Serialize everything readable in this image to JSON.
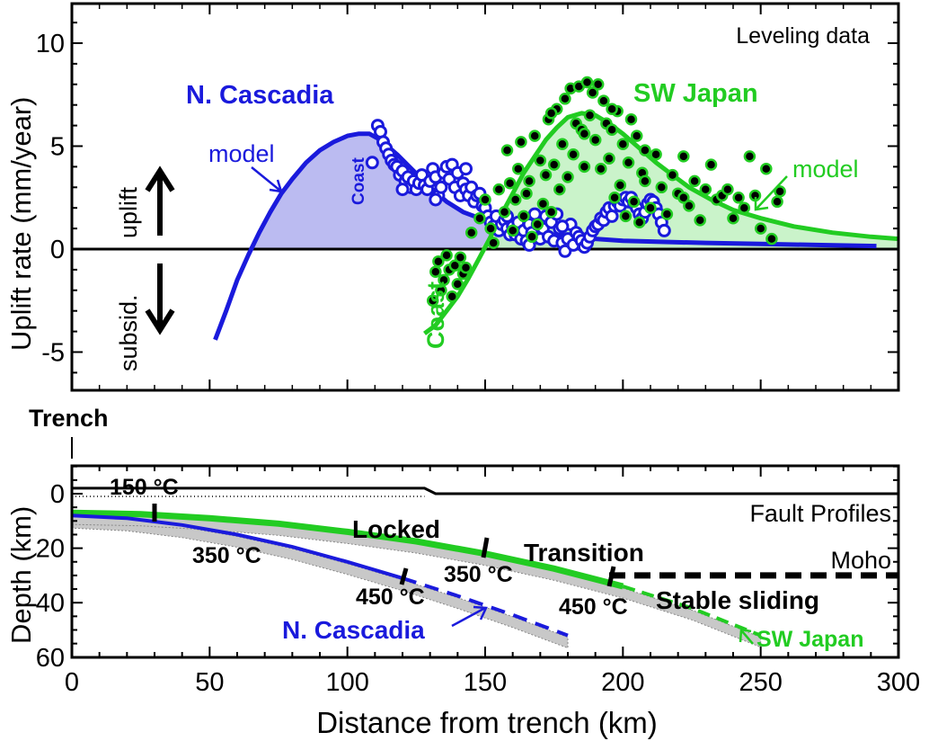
{
  "colors": {
    "cascadia": "#1a1adc",
    "japan": "#22cc22",
    "cascadia_fill": "#b4b4f0",
    "japan_fill": "#c4f2c4",
    "black": "#000000",
    "gray": "#c8c8c8"
  },
  "chart_data": [
    {
      "type": "line",
      "title": "",
      "panel_label": "Leveling data",
      "xlabel": "",
      "ylabel": "Uplift rate (mm/year)",
      "xlim": [
        -25,
        300
      ],
      "ylim": [
        -7,
        12
      ],
      "yticks": [
        "-5",
        "0",
        "5",
        "10"
      ],
      "grid": false,
      "side_labels": {
        "uplift": "uplift",
        "subsid": "subsid."
      },
      "annotations": {
        "cascadia_name": "N. Cascadia",
        "japan_name": "SW Japan",
        "cascadia_model": "model",
        "japan_model": "model",
        "cascadia_coast": "Coast",
        "japan_coast": "Coast"
      },
      "series": [
        {
          "name": "N. Cascadia",
          "role": "model",
          "x": [
            52,
            56,
            60,
            64,
            68,
            72,
            76,
            80,
            85,
            90,
            95,
            100,
            104,
            108,
            112,
            118,
            124,
            130,
            136,
            142,
            148,
            155,
            162,
            170,
            180,
            190,
            200,
            215,
            230,
            250,
            270,
            292
          ],
          "y": [
            -4.4,
            -3.0,
            -1.5,
            -0.3,
            0.8,
            1.8,
            2.7,
            3.4,
            4.2,
            4.8,
            5.2,
            5.5,
            5.6,
            5.6,
            5.3,
            4.6,
            3.8,
            3.0,
            2.3,
            1.8,
            1.5,
            1.2,
            1.0,
            0.8,
            0.6,
            0.5,
            0.4,
            0.35,
            0.3,
            0.25,
            0.2,
            0.15
          ]
        },
        {
          "name": "SW Japan",
          "role": "model",
          "x": [
            128,
            132,
            136,
            140,
            144,
            148,
            152,
            156,
            160,
            164,
            168,
            172,
            176,
            180,
            185,
            190,
            195,
            200,
            206,
            212,
            218,
            224,
            232,
            240,
            250,
            262,
            276,
            290,
            300
          ],
          "y": [
            -4.1,
            -3.7,
            -3.0,
            -2.3,
            -1.4,
            -0.4,
            0.6,
            1.7,
            2.7,
            3.7,
            4.5,
            5.3,
            5.9,
            6.4,
            6.6,
            6.5,
            6.1,
            5.6,
            4.9,
            4.2,
            3.6,
            3.0,
            2.4,
            1.9,
            1.5,
            1.1,
            0.8,
            0.6,
            0.5
          ]
        },
        {
          "name": "N. Cascadia",
          "role": "data",
          "points": [
            [
              111,
              6.0
            ],
            [
              112,
              5.7
            ],
            [
              113,
              5.2
            ],
            [
              114,
              4.9
            ],
            [
              115,
              4.6
            ],
            [
              116,
              4.3
            ],
            [
              117,
              4.1
            ],
            [
              118,
              4.0
            ],
            [
              119,
              3.6
            ],
            [
              120,
              3.8
            ],
            [
              121,
              3.3
            ],
            [
              122,
              3.5
            ],
            [
              123,
              3.0
            ],
            [
              124,
              3.3
            ],
            [
              125,
              2.9
            ],
            [
              126,
              3.2
            ],
            [
              127,
              3.6
            ],
            [
              128,
              3.1
            ],
            [
              129,
              2.9
            ],
            [
              130,
              3.3
            ],
            [
              131,
              3.9
            ],
            [
              132,
              3.5
            ],
            [
              133,
              2.6
            ],
            [
              134,
              3.0
            ],
            [
              135,
              3.7
            ],
            [
              136,
              4.0
            ],
            [
              137,
              3.4
            ],
            [
              138,
              4.1
            ],
            [
              139,
              3.0
            ],
            [
              140,
              3.7
            ],
            [
              141,
              2.6
            ],
            [
              142,
              3.2
            ],
            [
              143,
              2.9
            ],
            [
              144,
              2.6
            ],
            [
              145,
              3.0
            ],
            [
              146,
              2.3
            ],
            [
              147,
              2.6
            ],
            [
              148,
              2.7
            ],
            [
              149,
              2.1
            ],
            [
              150,
              2.0
            ],
            [
              151,
              1.6
            ],
            [
              152,
              1.3
            ],
            [
              153,
              1.1
            ],
            [
              154,
              1.6
            ],
            [
              155,
              0.9
            ],
            [
              156,
              1.2
            ],
            [
              157,
              1.4
            ],
            [
              158,
              1.0
            ],
            [
              159,
              0.7
            ],
            [
              160,
              1.1
            ],
            [
              161,
              0.7
            ],
            [
              162,
              1.3
            ],
            [
              163,
              0.5
            ],
            [
              164,
              0.9
            ],
            [
              165,
              0.4
            ],
            [
              166,
              1.2
            ],
            [
              167,
              0.8
            ],
            [
              168,
              1.7
            ],
            [
              169,
              1.2
            ],
            [
              170,
              0.5
            ],
            [
              171,
              1.0
            ],
            [
              172,
              1.6
            ],
            [
              173,
              0.6
            ],
            [
              174,
              1.3
            ],
            [
              175,
              0.4
            ],
            [
              176,
              1.7
            ],
            [
              177,
              1.0
            ],
            [
              178,
              0.3
            ],
            [
              179,
              -0.1
            ],
            [
              180,
              0.5
            ],
            [
              181,
              1.2
            ],
            [
              182,
              0.2
            ],
            [
              183,
              0.8
            ],
            [
              184,
              0.6
            ],
            [
              185,
              0.4
            ],
            [
              186,
              0.1
            ],
            [
              187,
              0.3
            ],
            [
              188,
              0.6
            ],
            [
              189,
              0.9
            ],
            [
              190,
              1.1
            ],
            [
              191,
              1.2
            ],
            [
              192,
              1.5
            ],
            [
              193,
              1.4
            ],
            [
              194,
              1.8
            ],
            [
              195,
              2.0
            ],
            [
              196,
              1.6
            ],
            [
              197,
              2.1
            ],
            [
              198,
              2.3
            ],
            [
              199,
              2.1
            ],
            [
              200,
              2.4
            ],
            [
              201,
              2.5
            ],
            [
              202,
              2.3
            ],
            [
              203,
              2.5
            ],
            [
              204,
              2.2
            ],
            [
              205,
              2.0
            ],
            [
              206,
              1.7
            ],
            [
              207,
              1.5
            ],
            [
              208,
              1.8
            ],
            [
              209,
              2.2
            ],
            [
              210,
              2.4
            ],
            [
              211,
              2.3
            ],
            [
              212,
              2.0
            ],
            [
              213,
              1.7
            ],
            [
              214,
              1.3
            ],
            [
              215,
              0.9
            ],
            [
              109,
              4.2
            ],
            [
              120,
              2.9
            ],
            [
              132,
              2.4
            ],
            [
              143,
              3.9
            ],
            [
              158,
              1.6
            ],
            [
              166,
              0.2
            ],
            [
              178,
              1.1
            ]
          ]
        },
        {
          "name": "SW Japan",
          "role": "data",
          "points": [
            [
              131,
              -2.5
            ],
            [
              132,
              -1.1
            ],
            [
              133,
              -0.6
            ],
            [
              134,
              -2.0
            ],
            [
              135,
              -1.5
            ],
            [
              136,
              -0.3
            ],
            [
              137,
              -1.0
            ],
            [
              138,
              -2.3
            ],
            [
              139,
              -0.8
            ],
            [
              140,
              -1.7
            ],
            [
              141,
              -0.4
            ],
            [
              142,
              -1.2
            ],
            [
              143,
              -0.9
            ],
            [
              145,
              0.8
            ],
            [
              148,
              1.5
            ],
            [
              150,
              2.4
            ],
            [
              152,
              1.0
            ],
            [
              153,
              0.3
            ],
            [
              155,
              2.9
            ],
            [
              157,
              1.8
            ],
            [
              158,
              4.8
            ],
            [
              159,
              3.2
            ],
            [
              160,
              0.9
            ],
            [
              161,
              2.4
            ],
            [
              162,
              3.9
            ],
            [
              163,
              5.2
            ],
            [
              164,
              1.6
            ],
            [
              165,
              2.7
            ],
            [
              166,
              3.3
            ],
            [
              167,
              0.6
            ],
            [
              168,
              5.5
            ],
            [
              169,
              1.2
            ],
            [
              170,
              4.3
            ],
            [
              171,
              2.2
            ],
            [
              172,
              3.6
            ],
            [
              173,
              6.3
            ],
            [
              174,
              1.8
            ],
            [
              175,
              4.1
            ],
            [
              176,
              6.8
            ],
            [
              177,
              2.9
            ],
            [
              178,
              5.1
            ],
            [
              179,
              7.3
            ],
            [
              180,
              3.5
            ],
            [
              181,
              7.8
            ],
            [
              182,
              4.6
            ],
            [
              183,
              6.1
            ],
            [
              184,
              7.9
            ],
            [
              185,
              5.8
            ],
            [
              186,
              4.0
            ],
            [
              187,
              8.1
            ],
            [
              188,
              6.5
            ],
            [
              189,
              7.6
            ],
            [
              190,
              5.3
            ],
            [
              191,
              8.0
            ],
            [
              192,
              3.9
            ],
            [
              193,
              7.2
            ],
            [
              194,
              6.1
            ],
            [
              195,
              4.4
            ],
            [
              196,
              5.8
            ],
            [
              197,
              2.5
            ],
            [
              198,
              6.7
            ],
            [
              199,
              3.1
            ],
            [
              200,
              5.1
            ],
            [
              201,
              1.6
            ],
            [
              202,
              4.2
            ],
            [
              203,
              6.3
            ],
            [
              204,
              2.3
            ],
            [
              205,
              5.5
            ],
            [
              206,
              1.3
            ],
            [
              207,
              3.7
            ],
            [
              208,
              4.8
            ],
            [
              210,
              2.0
            ],
            [
              212,
              4.6
            ],
            [
              214,
              3.0
            ],
            [
              216,
              1.7
            ],
            [
              218,
              3.6
            ],
            [
              220,
              2.7
            ],
            [
              222,
              4.5
            ],
            [
              224,
              2.1
            ],
            [
              226,
              3.3
            ],
            [
              228,
              1.4
            ],
            [
              230,
              2.9
            ],
            [
              232,
              4.1
            ],
            [
              234,
              2.4
            ],
            [
              236,
              2.6
            ],
            [
              238,
              2.9
            ],
            [
              240,
              1.5
            ],
            [
              242,
              2.5
            ],
            [
              244,
              2.0
            ],
            [
              246,
              4.5
            ],
            [
              248,
              2.6
            ],
            [
              250,
              1.0
            ],
            [
              252,
              3.9
            ],
            [
              254,
              0.5
            ],
            [
              256,
              2.3
            ],
            [
              257,
              2.8
            ],
            [
              174,
              6.6
            ],
            [
              186,
              5.6
            ],
            [
              196,
              6.8
            ],
            [
              208,
              3.3
            ],
            [
              222,
              2.5
            ]
          ]
        }
      ]
    },
    {
      "type": "line",
      "title": "",
      "panel_label": "Fault Profiles",
      "xlabel": "Distance from trench (km)",
      "ylabel": "Depth (km)",
      "xlim": [
        -25,
        300
      ],
      "ylim": [
        60,
        -10
      ],
      "xticks": [
        "0",
        "50",
        "100",
        "150",
        "200",
        "250",
        "300"
      ],
      "yticks": [
        "0",
        "20",
        "40",
        "60"
      ],
      "trench_label": "Trench",
      "grid": false,
      "annotations": {
        "t150": "150 °C",
        "t350_cascadia": "350 °C",
        "t450_cascadia": "450 °C",
        "t350_japan": "350 °C",
        "t450_japan": "450 °C",
        "locked": "Locked",
        "transition": "Transition",
        "stable": "Stable sliding",
        "moho": "Moho",
        "cascadia_name": "N. Cascadia",
        "japan_name": "SW Japan"
      },
      "series": [
        {
          "name": "N. Cascadia",
          "x": [
            0,
            20,
            40,
            60,
            80,
            100,
            120,
            140,
            160,
            180
          ],
          "y": [
            8,
            9,
            11.5,
            15,
            19.5,
            25,
            31,
            37.5,
            44.5,
            52
          ]
        },
        {
          "name": "SW Japan",
          "x": [
            0,
            25,
            50,
            75,
            100,
            125,
            150,
            175,
            200,
            225,
            250
          ],
          "y": [
            7,
            7.5,
            9,
            11,
            14,
            17.5,
            22,
            27.5,
            34,
            42,
            52
          ]
        },
        {
          "name": "surface",
          "x": [
            0,
            128,
            132,
            300
          ],
          "y": [
            -2,
            -2,
            0,
            0
          ]
        },
        {
          "name": "Moho",
          "x": [
            195,
            300
          ],
          "y": [
            30,
            30
          ]
        }
      ]
    }
  ]
}
